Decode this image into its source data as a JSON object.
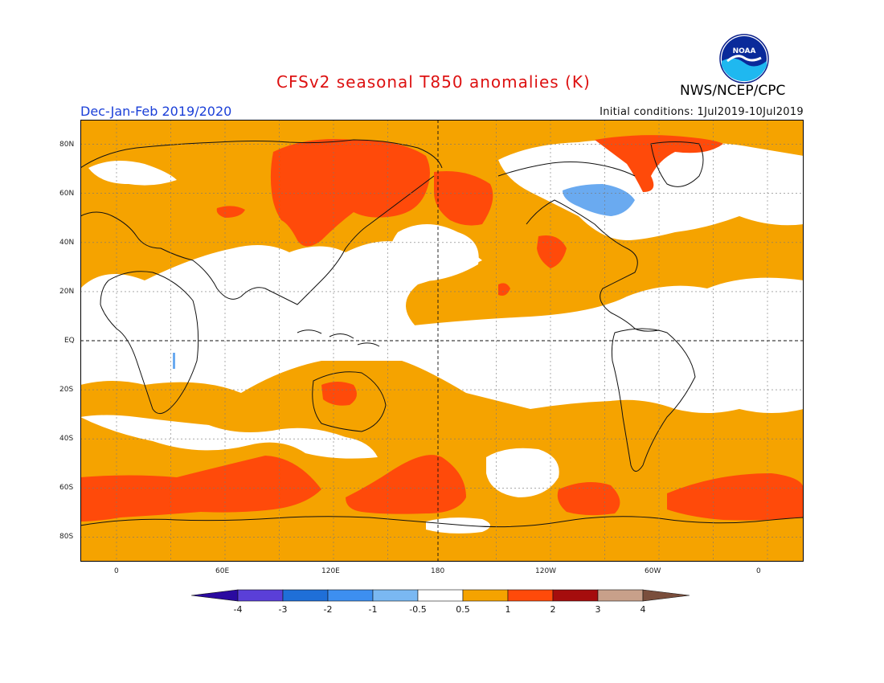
{
  "header": {
    "title": "CFSv2 seasonal T850 anomalies (K)",
    "agency": "NWS/NCEP/CPC",
    "season": "Dec-Jan-Feb 2019/2020",
    "initial_conditions": "Initial conditions: 1Jul2019-10Jul2019",
    "logo_text": "NOAA"
  },
  "map": {
    "projection": "equirectangular",
    "lon_range": [
      -20,
      380
    ],
    "lat_range": [
      -90,
      90
    ],
    "lat_ticks": [
      "80N",
      "60N",
      "40N",
      "20N",
      "EQ",
      "20S",
      "40S",
      "60S",
      "80S"
    ],
    "lon_ticks": [
      "0",
      "60E",
      "120E",
      "180",
      "120W",
      "60W",
      "0"
    ],
    "colors": {
      "ocean_land_bg": "#ffffff",
      "orange": "#f5a300",
      "red": "#ff4a0a",
      "light_blue": "#6aaaf0",
      "gridline": "#888888"
    }
  },
  "colorbar": {
    "labels": [
      "-4",
      "-3",
      "-2",
      "-1",
      "-0.5",
      "0.5",
      "1",
      "2",
      "3",
      "4"
    ],
    "colors": [
      "#2a0aa0",
      "#5a3fd8",
      "#1f6fd8",
      "#3d8ff0",
      "#7ab8f2",
      "#ffffff",
      "#f5a300",
      "#ff4a0a",
      "#a50d0d",
      "#c8a08a",
      "#7a4e3c"
    ]
  }
}
